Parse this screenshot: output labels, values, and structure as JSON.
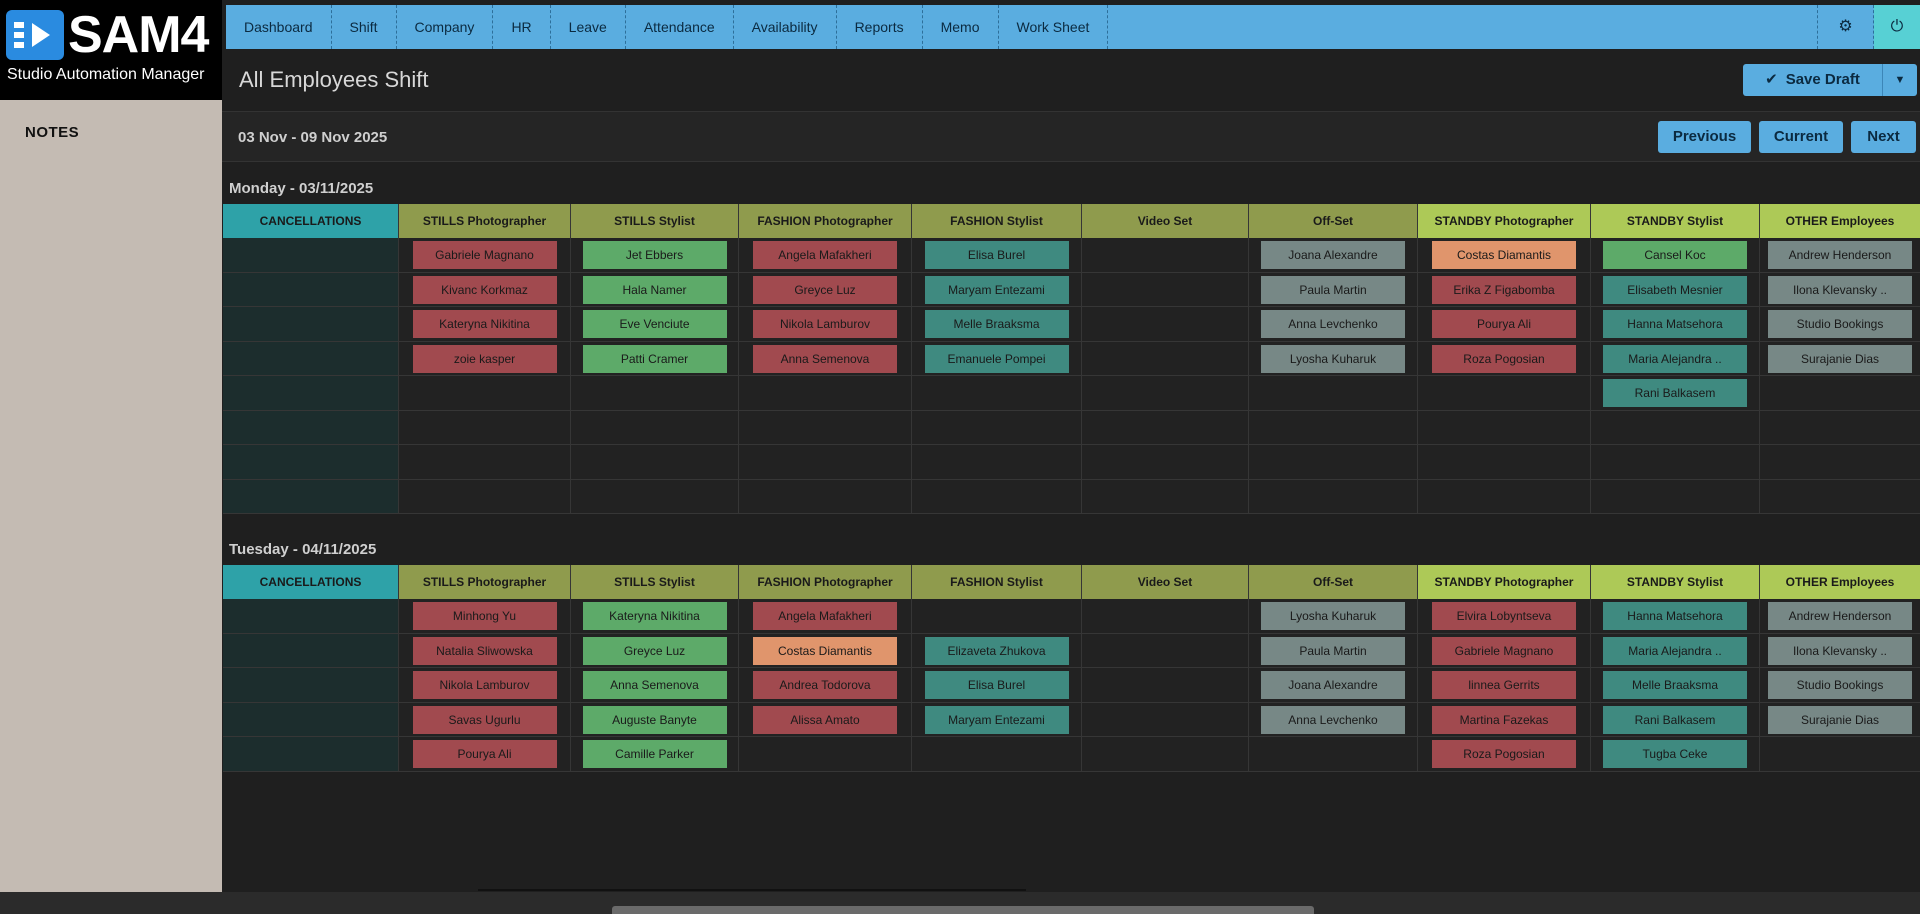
{
  "app": {
    "brand": "SAM4",
    "subtitle": "Studio Automation Manager"
  },
  "sidebar": {
    "notes_label": "NOTES"
  },
  "nav": {
    "items": [
      "Dashboard",
      "Shift",
      "Company",
      "HR",
      "Leave",
      "Attendance",
      "Availability",
      "Reports",
      "Memo",
      "Work Sheet"
    ],
    "settings_icon": "gear-icon",
    "power_icon": "power-icon"
  },
  "page": {
    "title": "All Employees Shift",
    "save_label": "Save Draft",
    "week_range": "03 Nov - 09 Nov 2025",
    "previous_label": "Previous",
    "current_label": "Current",
    "next_label": "Next"
  },
  "columns": [
    "CANCELLATIONS",
    "STILLS Photographer",
    "STILLS Stylist",
    "FASHION Photographer",
    "FASHION Stylist",
    "Video Set",
    "Off-Set",
    "STANDBY Photographer",
    "STANDBY Stylist",
    "OTHER Employees"
  ],
  "column_styles": [
    "cancel",
    "olive",
    "olive",
    "olive",
    "olive",
    "olive",
    "olive",
    "lime",
    "lime",
    "lime"
  ],
  "chip_colors": {
    "red": "#a14a4f",
    "green": "#5daa69",
    "teal": "#3f8a80",
    "grey": "#778886",
    "orange": "#e0956c"
  },
  "days": [
    {
      "title": "Monday - 03/11/2025",
      "rows": 8,
      "cells": [
        [],
        [
          {
            "n": "Gabriele Magnano",
            "c": "red"
          },
          {
            "n": "Kivanc Korkmaz",
            "c": "red"
          },
          {
            "n": "Kateryna Nikitina",
            "c": "red"
          },
          {
            "n": "zoie kasper",
            "c": "red"
          }
        ],
        [
          {
            "n": "Jet Ebbers",
            "c": "green"
          },
          {
            "n": "Hala Namer",
            "c": "green"
          },
          {
            "n": "Eve Venciute",
            "c": "green"
          },
          {
            "n": "Patti Cramer",
            "c": "green"
          }
        ],
        [
          {
            "n": "Angela Mafakheri",
            "c": "red"
          },
          {
            "n": "Greyce Luz",
            "c": "red"
          },
          {
            "n": "Nikola Lamburov",
            "c": "red"
          },
          {
            "n": "Anna Semenova",
            "c": "red"
          }
        ],
        [
          {
            "n": "Elisa Burel",
            "c": "teal"
          },
          {
            "n": "Maryam Entezami",
            "c": "teal"
          },
          {
            "n": "Melle Braaksma",
            "c": "teal"
          },
          {
            "n": "Emanuele Pompei",
            "c": "teal"
          }
        ],
        [],
        [
          {
            "n": "Joana Alexandre",
            "c": "grey"
          },
          {
            "n": "Paula Martin",
            "c": "grey"
          },
          {
            "n": "Anna Levchenko",
            "c": "grey"
          },
          {
            "n": "Lyosha Kuharuk",
            "c": "grey"
          }
        ],
        [
          {
            "n": "Costas Diamantis",
            "c": "orange"
          },
          {
            "n": "Erika Z Figabomba",
            "c": "red"
          },
          {
            "n": "Pourya Ali",
            "c": "red"
          },
          {
            "n": "Roza Pogosian",
            "c": "red"
          }
        ],
        [
          {
            "n": "Cansel Koc",
            "c": "green"
          },
          {
            "n": "Elisabeth Mesnier",
            "c": "teal"
          },
          {
            "n": "Hanna Matsehora",
            "c": "teal"
          },
          {
            "n": "Maria Alejandra ..",
            "c": "teal"
          },
          {
            "n": "Rani Balkasem",
            "c": "teal"
          }
        ],
        [
          {
            "n": "Andrew Henderson",
            "c": "grey"
          },
          {
            "n": "Ilona Klevansky ..",
            "c": "grey"
          },
          {
            "n": "Studio Bookings",
            "c": "grey"
          },
          {
            "n": "Surajanie Dias",
            "c": "grey"
          }
        ]
      ]
    },
    {
      "title": "Tuesday - 04/11/2025",
      "rows": 5,
      "cells": [
        [],
        [
          {
            "n": "Minhong Yu",
            "c": "red"
          },
          {
            "n": "Natalia Sliwowska",
            "c": "red"
          },
          {
            "n": "Nikola Lamburov",
            "c": "red"
          },
          {
            "n": "Savas Ugurlu",
            "c": "red"
          },
          {
            "n": "Pourya Ali",
            "c": "red"
          }
        ],
        [
          {
            "n": "Kateryna Nikitina",
            "c": "green"
          },
          {
            "n": "Greyce Luz",
            "c": "green"
          },
          {
            "n": "Anna Semenova",
            "c": "green"
          },
          {
            "n": "Auguste Banyte",
            "c": "green"
          },
          {
            "n": "Camille Parker",
            "c": "green"
          }
        ],
        [
          {
            "n": "Angela Mafakheri",
            "c": "red"
          },
          {
            "n": "Costas Diamantis",
            "c": "orange"
          },
          {
            "n": "Andrea Todorova",
            "c": "red"
          },
          {
            "n": "Alissa Amato",
            "c": "red"
          }
        ],
        [
          null,
          {
            "n": "Elizaveta Zhukova",
            "c": "teal"
          },
          {
            "n": "Elisa Burel",
            "c": "teal"
          },
          {
            "n": "Maryam Entezami",
            "c": "teal"
          }
        ],
        [],
        [
          {
            "n": "Lyosha Kuharuk",
            "c": "grey"
          },
          {
            "n": "Paula Martin",
            "c": "grey"
          },
          {
            "n": "Joana Alexandre",
            "c": "grey"
          },
          {
            "n": "Anna Levchenko",
            "c": "grey"
          }
        ],
        [
          {
            "n": "Elvira Lobyntseva",
            "c": "red"
          },
          {
            "n": "Gabriele Magnano",
            "c": "red"
          },
          {
            "n": "linnea Gerrits",
            "c": "red"
          },
          {
            "n": "Martina Fazekas",
            "c": "red"
          },
          {
            "n": "Roza Pogosian",
            "c": "red"
          }
        ],
        [
          {
            "n": "Hanna Matsehora",
            "c": "teal"
          },
          {
            "n": "Maria Alejandra ..",
            "c": "teal"
          },
          {
            "n": "Melle Braaksma",
            "c": "teal"
          },
          {
            "n": "Rani Balkasem",
            "c": "teal"
          },
          {
            "n": "Tugba Ceke",
            "c": "teal"
          }
        ],
        [
          {
            "n": "Andrew Henderson",
            "c": "grey"
          },
          {
            "n": "Ilona Klevansky ..",
            "c": "grey"
          },
          {
            "n": "Studio Bookings",
            "c": "grey"
          },
          {
            "n": "Surajanie Dias",
            "c": "grey"
          }
        ]
      ]
    }
  ]
}
